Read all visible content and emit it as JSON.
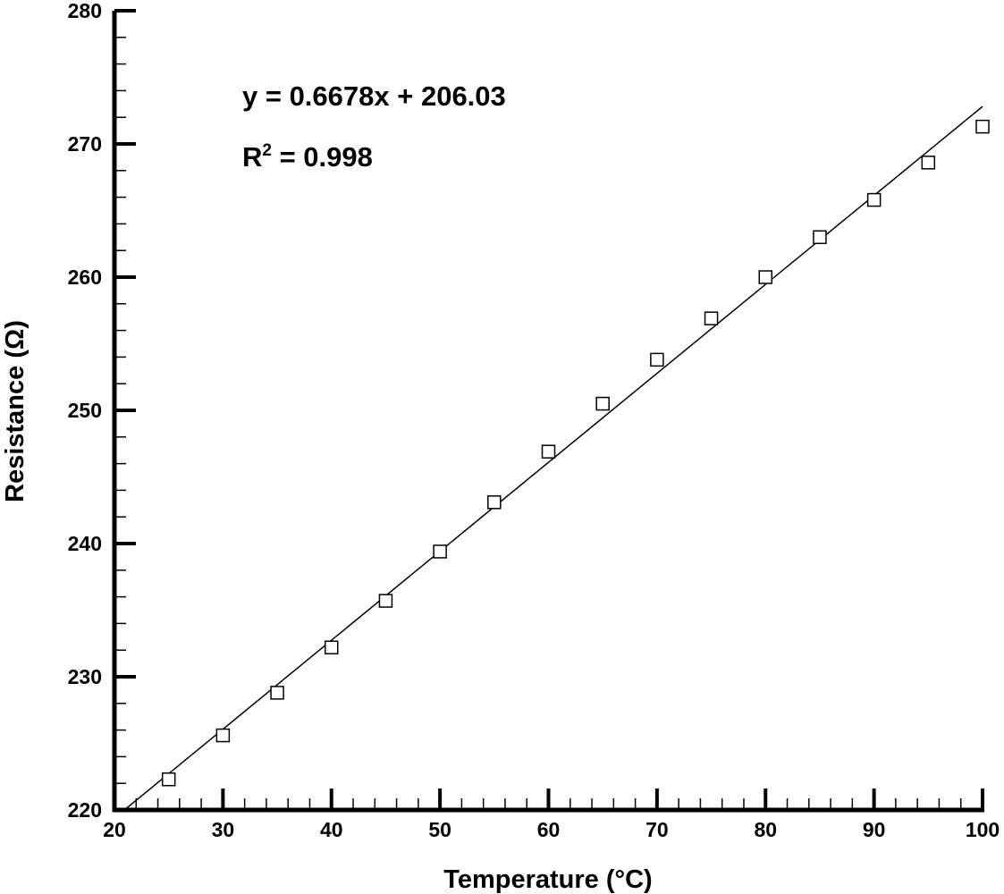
{
  "chart_data": {
    "type": "scatter",
    "title": "",
    "xlabel": "Temperature (°C)",
    "ylabel": "Resistance (Ω)",
    "xlim": [
      20,
      100
    ],
    "ylim": [
      220,
      280
    ],
    "x_ticks": [
      "20",
      "30",
      "40",
      "50",
      "60",
      "70",
      "80",
      "90",
      "100"
    ],
    "y_ticks": [
      "220",
      "230",
      "240",
      "250",
      "260",
      "270",
      "280"
    ],
    "grid": false,
    "legend": "none",
    "marker": "open-square",
    "series": [
      {
        "x": [
          25,
          30,
          35,
          40,
          45,
          50,
          55,
          60,
          65,
          70,
          75,
          80,
          85,
          90,
          95,
          100
        ],
        "y": [
          222.3,
          225.6,
          228.8,
          232.2,
          235.7,
          239.4,
          243.1,
          246.9,
          250.5,
          253.8,
          256.9,
          260.0,
          263.0,
          265.8,
          268.6,
          271.3
        ]
      }
    ],
    "fit_line": {
      "slope": 0.6678,
      "intercept": 206.03,
      "x_range": [
        20,
        100
      ]
    },
    "annotations": {
      "equation": "y = 0.6678x + 206.03",
      "r2_prefix": "R",
      "r2_superscript": "2",
      "r2_value": " = 0.998"
    }
  }
}
